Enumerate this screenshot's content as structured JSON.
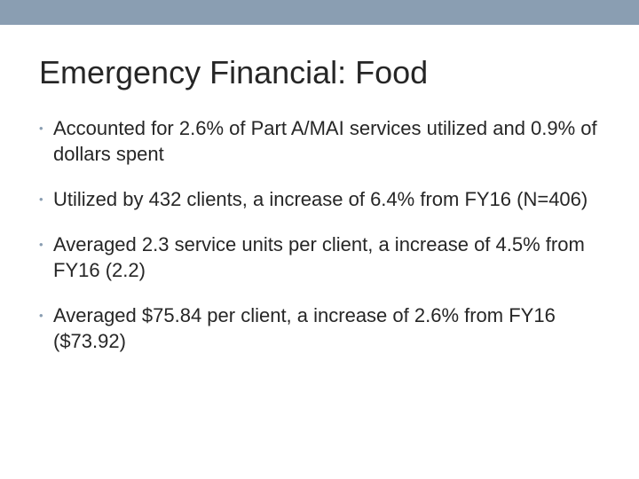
{
  "slide": {
    "title": "Emergency Financial: Food",
    "accent_color": "#8a9eb2",
    "bullet_glyph": "•",
    "bullets": [
      "Accounted for 2.6% of Part A/MAI services utilized and 0.9% of dollars spent",
      "Utilized by 432 clients, a increase of 6.4% from FY16 (N=406)",
      "Averaged 2.3 service units per client, a increase of 4.5% from FY16 (2.2)",
      "Averaged $75.84 per client, a increase of 2.6% from FY16 ($73.92)"
    ]
  }
}
